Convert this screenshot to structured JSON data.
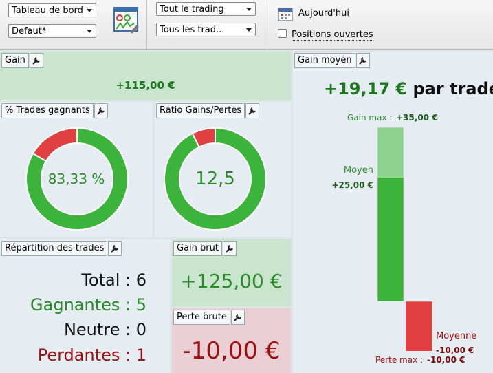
{
  "toolbar": {
    "dashboard_select": "Tableau de bord",
    "preset_select": "Defaut*",
    "period_select": "Tout le trading",
    "trades_select": "Tous les trad...",
    "today": "Aujourd'hui",
    "open_positions": "Positions ouvertes"
  },
  "gain": {
    "title": "Gain",
    "value": "+115,00 €"
  },
  "win_rate": {
    "title": "% Trades gagnants",
    "percent": 83.33,
    "label": "83,33 %"
  },
  "ratio": {
    "title": "Ratio Gains/Pertes",
    "ratio": 12.5,
    "label": "12,5"
  },
  "distribution": {
    "title": "Répartition des trades",
    "lines": [
      "Total : 6",
      "Gagnantes : 5",
      "Neutre : 0",
      "Perdantes : 1"
    ]
  },
  "gross_gain": {
    "title": "Gain brut",
    "value": "+125,00 €"
  },
  "gross_loss": {
    "title": "Perte brute",
    "value": "-10,00 €"
  },
  "average_gain": {
    "title": "Gain moyen",
    "value": "+19,17 €",
    "suffix": "par trade",
    "max_gain": {
      "label": "Gain max :",
      "value": 35,
      "value_label": "+35,00 €"
    },
    "avg_win": {
      "label": "Moyen",
      "value": 25,
      "value_label": "+25,00 €"
    },
    "avg_loss": {
      "label": "Moyenne",
      "value": -10,
      "value_label": "-10,00 €"
    },
    "max_loss": {
      "label": "Perte max :",
      "value": -10,
      "value_label": "-10,00 €"
    }
  }
}
